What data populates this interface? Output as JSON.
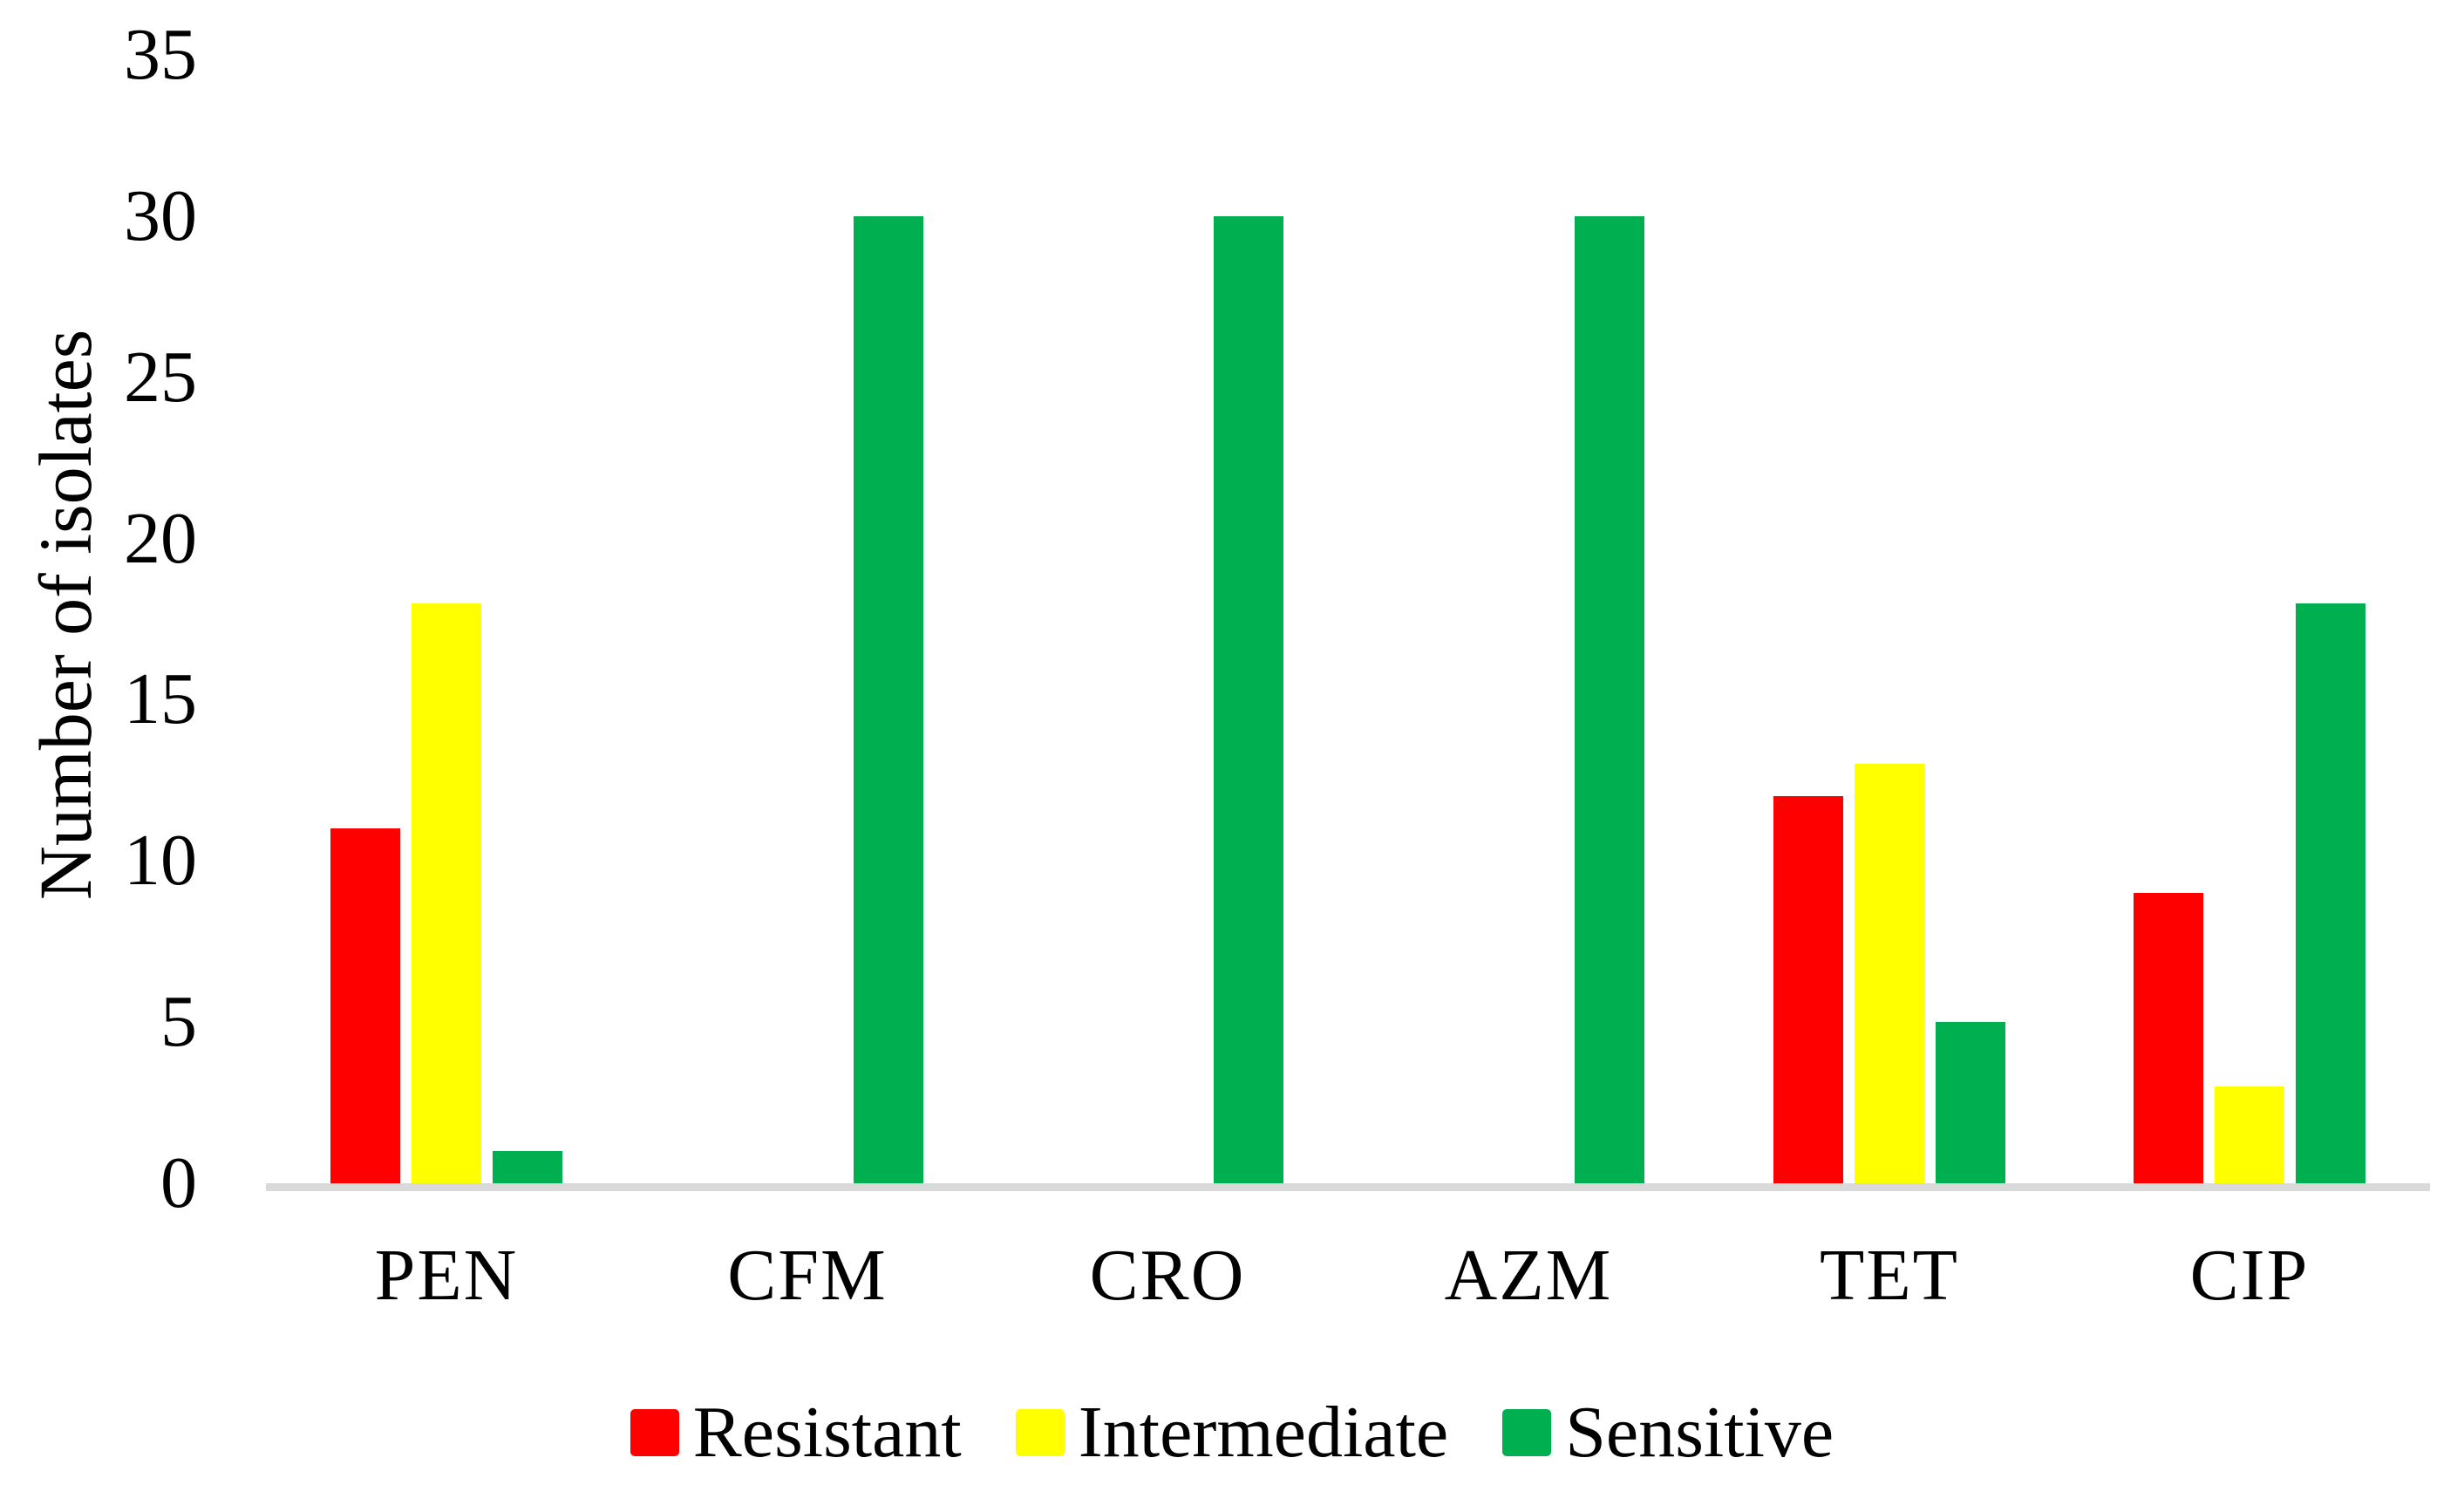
{
  "figure": {
    "background": "#FFFFFF",
    "axis_line_color": "#D9D9D9",
    "text_color": "#000000"
  },
  "chart_data": {
    "type": "bar",
    "title": "",
    "xlabel": "",
    "ylabel": "Number of isolates",
    "categories": [
      "PEN",
      "CFM",
      "CRO",
      "AZM",
      "TET",
      "CIP"
    ],
    "series": [
      {
        "name": "Resistant",
        "color": "#FF0000",
        "values": [
          11,
          0,
          0,
          0,
          12,
          9
        ]
      },
      {
        "name": "Intermediate",
        "color": "#FFFF00",
        "values": [
          18,
          0,
          0,
          0,
          13,
          3
        ]
      },
      {
        "name": "Sensitive",
        "color": "#00B050",
        "values": [
          1,
          30,
          30,
          30,
          5,
          18
        ]
      }
    ],
    "ylim": [
      0,
      35
    ],
    "yticks": [
      0,
      5,
      10,
      15,
      20,
      25,
      30,
      35
    ],
    "grid": false,
    "legend_position": "bottom"
  }
}
